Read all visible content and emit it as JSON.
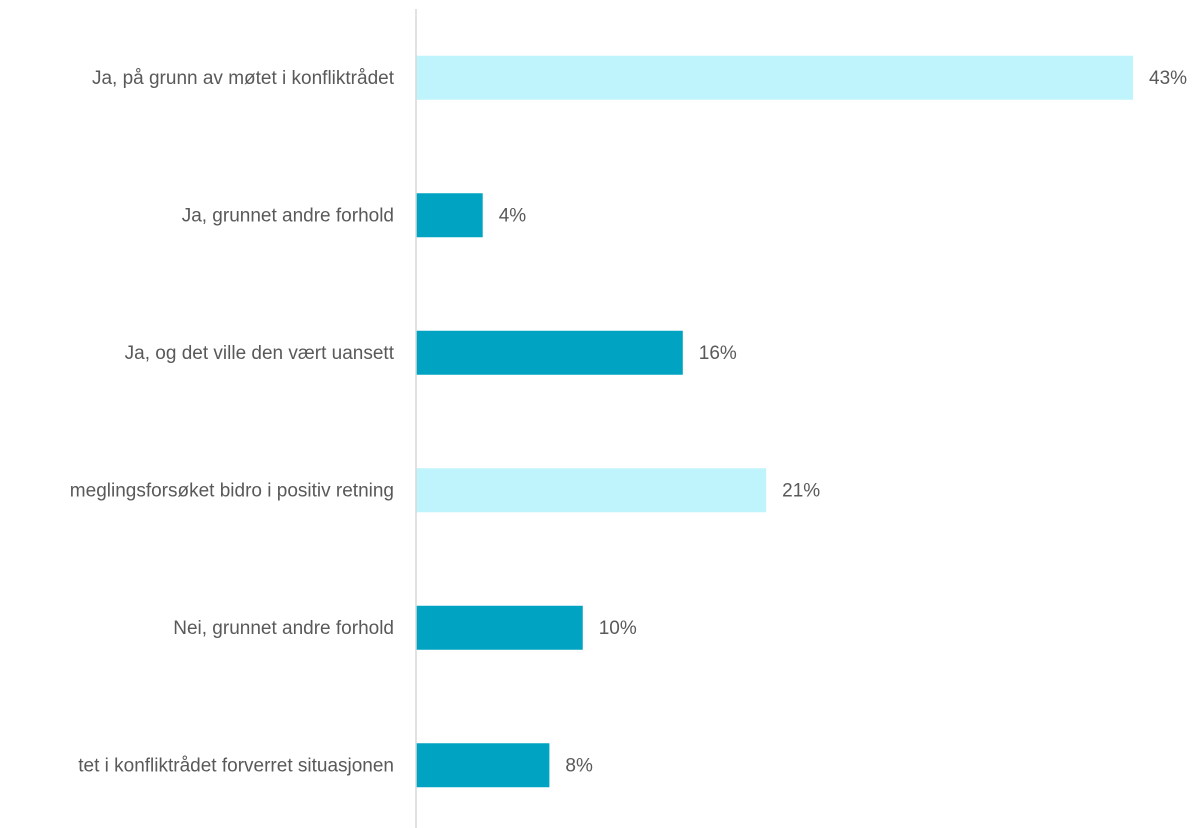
{
  "chart_data": {
    "type": "hbar",
    "categories": [
      "Ja, på grunn av møtet i konfliktrådet",
      "Ja, grunnet andre forhold",
      "Ja, og det ville den vært uansett",
      "meglingsforsøket bidro i positiv retning",
      "Nei, grunnet andre forhold",
      "tet i konfliktrådet forverret situasjonen"
    ],
    "values": [
      43,
      4,
      16,
      21,
      10,
      8
    ],
    "value_labels": [
      "43%",
      "4%",
      "16%",
      "21%",
      "10%",
      "8%"
    ],
    "colors": [
      "#bff4fc",
      "#00a3c1",
      "#00a3c1",
      "#bff4fc",
      "#00a3c1",
      "#00a3c1"
    ],
    "xlim": [
      0,
      43
    ]
  }
}
